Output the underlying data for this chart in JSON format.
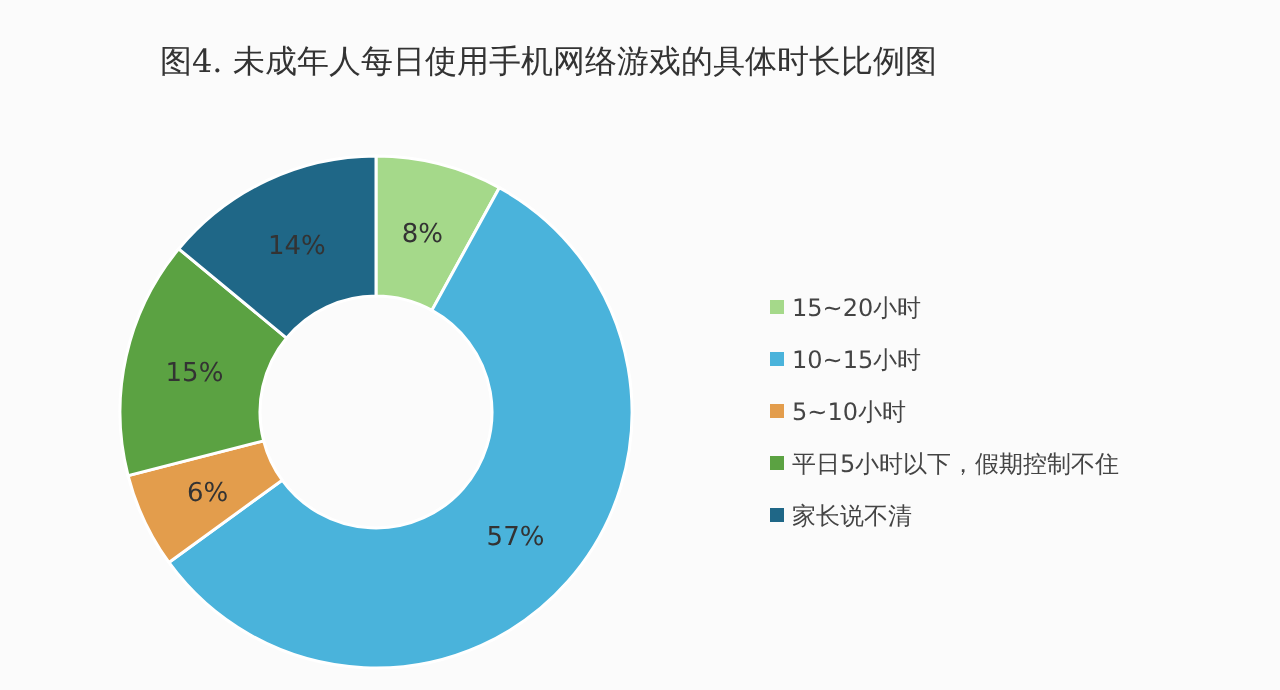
{
  "chart_data": {
    "type": "donut",
    "title": "图4. 未成年人每日使用手机网络游戏的具体时长比例图",
    "categories": [
      "15~20小时",
      "10~15小时",
      "5~10小时",
      "平日5小时以下，假期控制不住",
      "家长说不清"
    ],
    "values": [
      8,
      57,
      6,
      15,
      14
    ],
    "colors": [
      "#a5d98a",
      "#4ab3db",
      "#e39d4c",
      "#5ba242",
      "#1f6787"
    ],
    "value_labels": [
      "8%",
      "57%",
      "6%",
      "15%",
      "14%"
    ],
    "legend": "right"
  }
}
